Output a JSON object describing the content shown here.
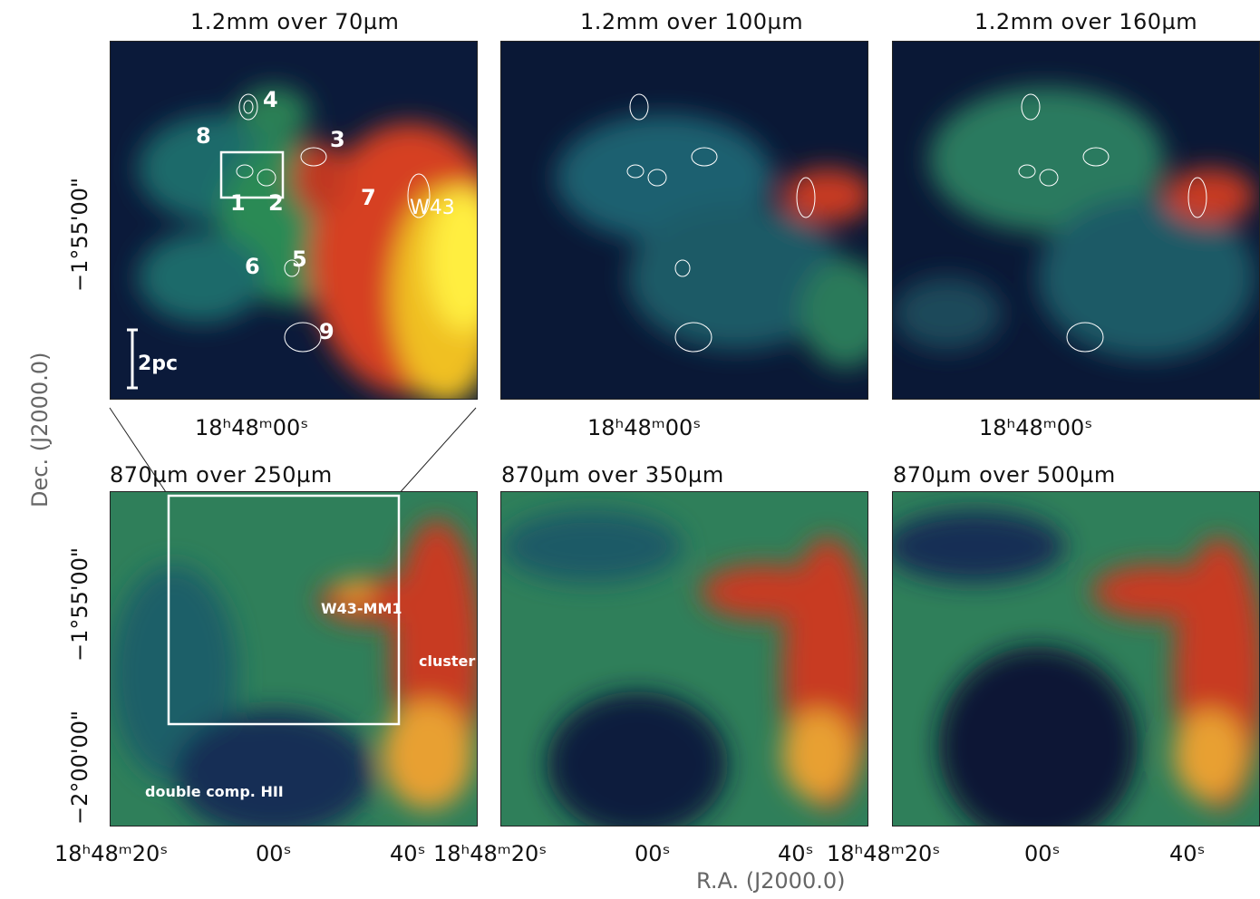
{
  "figure": {
    "top_titles": [
      "1.2mm over 70µm",
      "1.2mm over 100µm",
      "1.2mm over 160µm"
    ],
    "bottom_titles": [
      "870µm over 250µm",
      "870µm over 350µm",
      "870µm over 500µm"
    ],
    "top_ra_label": "18ʰ48ᵐ00ˢ",
    "dec_top_tick": "−1°55'00\"",
    "dec_bottom_tick_a": "−2°00'00\"",
    "dec_bottom_tick_b": "−1°55'00\"",
    "dec_bottom_tick_c": "−2°00'00\"",
    "dec_axis_label": "Dec. (J2000.0)",
    "ra_axis_label": "R.A. (J2000.0)",
    "bottom_ra_ticks": [
      "18ʰ48ᵐ20ˢ",
      "00ˢ",
      "40ˢ",
      "18ʰ48ᵐ20ˢ",
      "00ˢ",
      "40ˢ",
      "18ʰ48ᵐ20ˢ",
      "00ˢ",
      "40ˢ"
    ],
    "source_numbers": [
      "1",
      "2",
      "3",
      "4",
      "5",
      "6",
      "7",
      "8",
      "9"
    ],
    "w43_label": "W43",
    "scale_bar": "2pc",
    "mm1_label": "W43-MM1",
    "cluster_label": "cluster",
    "hii_label": "double comp. HII"
  }
}
